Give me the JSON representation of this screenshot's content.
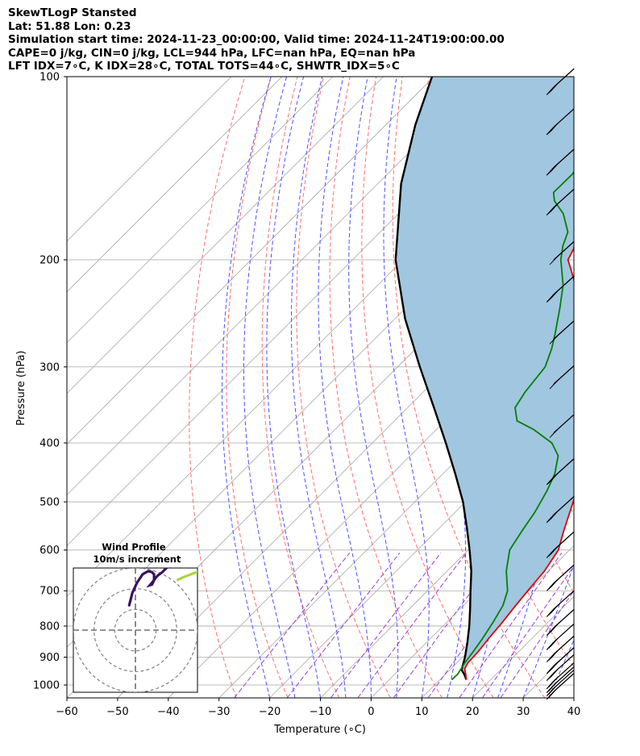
{
  "header": {
    "line1": "SkewTLogP Stansted",
    "line2": "Lat: 51.88   Lon: 0.23",
    "line3": "Simulation start time: 2024-11-23_00:00:00, Valid time: 2024-11-24T19:00:00.00",
    "line4": "CAPE=0 j/kg, CIN=0 j/kg, LCL=944 hPa, LFC=nan hPa, EQ=nan hPa",
    "line5": "LFT IDX=7∘C, K IDX=28∘C, TOTAL TOTS=44∘C, SHWTR_IDX=5∘C"
  },
  "chart_data": [
    {
      "type": "line",
      "chart": "skew-t log-p",
      "xlabel": "Temperature (∘C)",
      "ylabel": "Pressure (hPa)",
      "xlim": [
        -60,
        40
      ],
      "ylim": [
        1050,
        100
      ],
      "y_scale": "log",
      "skew_deg": 45,
      "grid": true,
      "x_ticks": [
        "−60",
        "−50",
        "−40",
        "−30",
        "−20",
        "−10",
        "0",
        "10",
        "20",
        "30",
        "40"
      ],
      "x_tick_values": [
        -60,
        -50,
        -40,
        -30,
        -20,
        -10,
        0,
        10,
        20,
        30,
        40
      ],
      "y_ticks": [
        "100",
        "200",
        "300",
        "400",
        "500",
        "600",
        "700",
        "800",
        "900",
        "1000"
      ],
      "y_tick_values": [
        100,
        200,
        300,
        400,
        500,
        600,
        700,
        800,
        900,
        1000
      ],
      "colors": {
        "temperature": "#e00000",
        "dewpoint": "#008000",
        "parcel": "#000000",
        "shading": "#a1c6df",
        "dry_adiabats": "#ff6f6f",
        "moist_adiabats": "#4f4fff",
        "mixing_ratio": "#9a3fd8",
        "isotherms": "#a8a8a8"
      },
      "series": [
        {
          "role": "temperature",
          "points": [
            [
              980,
              15.2
            ],
            [
              960,
              14.0
            ],
            [
              940,
              12.7
            ],
            [
              920,
              12.2
            ],
            [
              880,
              12.0
            ],
            [
              840,
              11.5
            ],
            [
              790,
              11.0
            ],
            [
              740,
              10.3
            ],
            [
              700,
              9.8
            ],
            [
              650,
              9.2
            ],
            [
              600,
              7.8
            ],
            [
              560,
              5.2
            ],
            [
              520,
              2.6
            ],
            [
              480,
              -0.2
            ],
            [
              450,
              -2.2
            ],
            [
              420,
              -3.8
            ],
            [
              390,
              -5.2
            ],
            [
              365,
              -7.3
            ],
            [
              345,
              -11.0
            ],
            [
              320,
              -16.2
            ],
            [
              300,
              -20.2
            ],
            [
              280,
              -24.8
            ],
            [
              260,
              -30.1
            ],
            [
              245,
              -34.3
            ],
            [
              230,
              -38.5
            ],
            [
              215,
              -42.6
            ],
            [
              205,
              -45.8
            ],
            [
              200,
              -47.5
            ],
            [
              192,
              -48.5
            ],
            [
              183,
              -50.6
            ],
            [
              170,
              -52.5
            ],
            [
              160,
              -53.5
            ],
            [
              150,
              -57.0
            ],
            [
              140,
              -60.5
            ],
            [
              130,
              -64.0
            ],
            [
              120,
              -67.8
            ],
            [
              110,
              -71.7
            ],
            [
              104,
              -74.0
            ],
            [
              100,
              -75.4
            ]
          ]
        },
        {
          "role": "dewpoint",
          "points": [
            [
              980,
              12.3
            ],
            [
              960,
              12.4
            ],
            [
              940,
              12.0
            ],
            [
              920,
              11.6
            ],
            [
              880,
              11.0
            ],
            [
              840,
              10.3
            ],
            [
              790,
              9.2
            ],
            [
              740,
              7.8
            ],
            [
              700,
              5.8
            ],
            [
              650,
              1.7
            ],
            [
              600,
              -1.8
            ],
            [
              560,
              -3.1
            ],
            [
              520,
              -4.3
            ],
            [
              480,
              -6.1
            ],
            [
              450,
              -7.9
            ],
            [
              420,
              -10.8
            ],
            [
              400,
              -14.6
            ],
            [
              380,
              -20.9
            ],
            [
              368,
              -25.8
            ],
            [
              350,
              -28.8
            ],
            [
              330,
              -29.9
            ],
            [
              300,
              -30.9
            ],
            [
              280,
              -33.2
            ],
            [
              265,
              -35.4
            ],
            [
              240,
              -39.6
            ],
            [
              220,
              -43.5
            ],
            [
              200,
              -48.9
            ],
            [
              190,
              -51.2
            ],
            [
              180,
              -53.0
            ],
            [
              168,
              -57.5
            ],
            [
              160,
              -61.8
            ],
            [
              155,
              -63.6
            ],
            [
              145,
              -63.5
            ],
            [
              135,
              -64.3
            ],
            [
              125,
              -66.2
            ],
            [
              115,
              -68.6
            ],
            [
              105,
              -71.3
            ],
            [
              100,
              -72.3
            ]
          ]
        },
        {
          "role": "parcel",
          "points": [
            [
              980,
              15.2
            ],
            [
              960,
              13.7
            ],
            [
              944,
              12.3
            ],
            [
              900,
              10.5
            ],
            [
              850,
              8.0
            ],
            [
              800,
              5.2
            ],
            [
              750,
              2.0
            ],
            [
              700,
              -1.5
            ],
            [
              650,
              -5.2
            ],
            [
              600,
              -9.7
            ],
            [
              550,
              -14.8
            ],
            [
              500,
              -20.5
            ],
            [
              450,
              -27.5
            ],
            [
              400,
              -35.5
            ],
            [
              350,
              -44.8
            ],
            [
              300,
              -55.6
            ],
            [
              250,
              -68.0
            ],
            [
              200,
              -81.5
            ],
            [
              150,
              -95.4
            ],
            [
              120,
              -104.2
            ],
            [
              100,
              -110.4
            ]
          ]
        }
      ],
      "wind_barbs": [
        {
          "p": 1025,
          "feathers": 2,
          "flag": false
        },
        {
          "p": 1012,
          "feathers": 2,
          "flag": false
        },
        {
          "p": 1000,
          "feathers": 2,
          "flag": false
        },
        {
          "p": 985,
          "feathers": 2,
          "flag": false
        },
        {
          "p": 955,
          "feathers": 3,
          "flag": false
        },
        {
          "p": 930,
          "feathers": 3,
          "flag": false
        },
        {
          "p": 890,
          "feathers": 3,
          "flag": false
        },
        {
          "p": 850,
          "feathers": 3,
          "flag": false
        },
        {
          "p": 805,
          "feathers": 3,
          "flag": false
        },
        {
          "p": 750,
          "feathers": 3,
          "flag": false
        },
        {
          "p": 680,
          "feathers": 3,
          "flag": false
        },
        {
          "p": 600,
          "feathers": 3,
          "flag": false
        },
        {
          "p": 525,
          "feathers": 3,
          "flag": false
        },
        {
          "p": 455,
          "feathers": 3,
          "flag": false
        },
        {
          "p": 385,
          "feathers": 0,
          "flag": true
        },
        {
          "p": 320,
          "feathers": 0,
          "flag": true
        },
        {
          "p": 270,
          "feathers": 0,
          "flag": true
        },
        {
          "p": 228,
          "feathers": 3,
          "flag": false
        },
        {
          "p": 200,
          "feathers": 0,
          "flag": true
        },
        {
          "p": 164,
          "feathers": 3,
          "flag": false
        },
        {
          "p": 141,
          "feathers": 3,
          "flag": false
        },
        {
          "p": 121,
          "feathers": 3,
          "flag": false
        },
        {
          "p": 104,
          "feathers": 3,
          "flag": false
        }
      ]
    },
    {
      "type": "line",
      "chart": "hodograph",
      "title": "Wind Profile",
      "subtitle": "10m/s increment",
      "ring_step": 10,
      "rings": 3,
      "trace": [
        [
          -3,
          12
        ],
        [
          -1.5,
          18
        ],
        [
          0.8,
          23
        ],
        [
          3.5,
          27
        ],
        [
          6.2,
          28.5
        ],
        [
          8,
          28
        ],
        [
          9,
          27
        ],
        [
          9,
          24
        ],
        [
          8,
          22
        ],
        [
          7,
          21.7
        ],
        [
          8.5,
          23.5
        ],
        [
          10,
          25.5
        ],
        [
          11,
          26.5
        ],
        [
          13,
          28
        ],
        [
          15,
          30
        ],
        [
          17,
          32
        ],
        [
          19,
          33
        ]
      ],
      "tail": [
        [
          20,
          24
        ],
        [
          23,
          25.5
        ],
        [
          27,
          27
        ],
        [
          32,
          29
        ]
      ],
      "colors": {
        "trace": "#3a1161",
        "tail": "#a8d43a",
        "rings": "#808080"
      }
    }
  ]
}
